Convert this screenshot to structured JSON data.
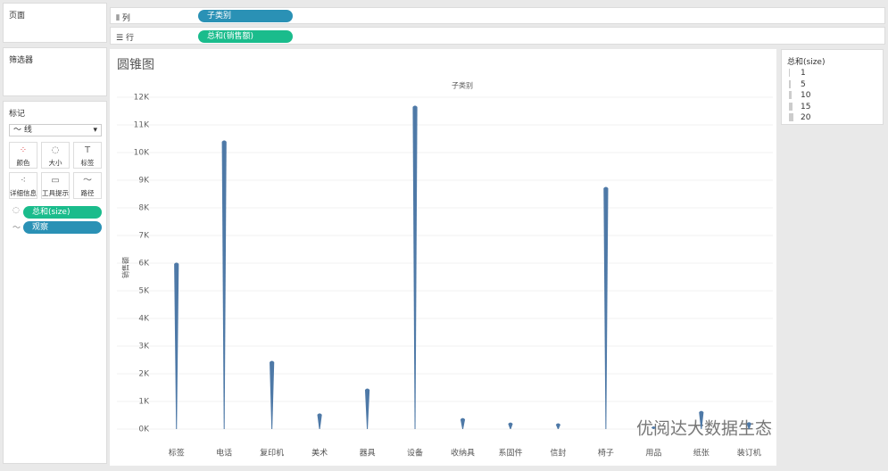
{
  "shelves": {
    "pages": "页面",
    "columns_label": "列",
    "columns_pill": "子类别",
    "rows_label": "行",
    "rows_pill": "总和(销售额)",
    "filters": "筛选器"
  },
  "marks": {
    "title": "标记",
    "mark_type": "线",
    "buttons": [
      "颜色",
      "大小",
      "标签",
      "详细信息",
      "工具提示",
      "路径"
    ],
    "pills": [
      "总和(size)",
      "观察"
    ]
  },
  "size_legend": {
    "title": "总和(size)",
    "values": [
      1,
      5,
      10,
      15,
      20
    ]
  },
  "watermark": "优阅达大数据生态",
  "chart_data": {
    "type": "cone",
    "title": "圆锥图",
    "x_header": "子类别",
    "y_label": "销售额",
    "categories": [
      "标签",
      "电话",
      "复印机",
      "美术",
      "器具",
      "设备",
      "收纳具",
      "系固件",
      "信封",
      "椅子",
      "用品",
      "纸张",
      "装订机"
    ],
    "values": [
      5970,
      10390,
      2420,
      520,
      1420,
      11650,
      350,
      190,
      160,
      8710,
      50,
      610,
      200
    ],
    "color": "#4e79a7",
    "ylim": [
      0,
      12000
    ],
    "grid": true,
    "yticks": [
      {
        "value": 0,
        "label": "0K"
      },
      {
        "value": 1000,
        "label": "1K"
      },
      {
        "value": 2000,
        "label": "2K"
      },
      {
        "value": 3000,
        "label": "3K"
      },
      {
        "value": 4000,
        "label": "4K"
      },
      {
        "value": 5000,
        "label": "5K"
      },
      {
        "value": 6000,
        "label": "6K"
      },
      {
        "value": 7000,
        "label": "7K"
      },
      {
        "value": 8000,
        "label": "8K"
      },
      {
        "value": 9000,
        "label": "9K"
      },
      {
        "value": 10000,
        "label": "10K"
      },
      {
        "value": 11000,
        "label": "11K"
      },
      {
        "value": 12000,
        "label": "12K"
      }
    ]
  }
}
